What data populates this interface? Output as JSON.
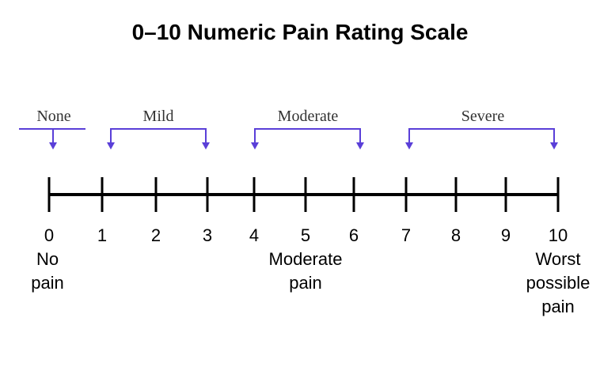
{
  "title": "0–10 Numeric Pain Rating Scale",
  "categories": [
    "None",
    "Mild",
    "Moderate",
    "Severe"
  ],
  "ticks": [
    0,
    1,
    2,
    3,
    4,
    5,
    6,
    7,
    8,
    9,
    10
  ],
  "anchors": [
    [
      "No",
      "pain"
    ],
    [
      "Moderate",
      "pain"
    ],
    [
      "Worst",
      "possible",
      "pain"
    ]
  ]
}
